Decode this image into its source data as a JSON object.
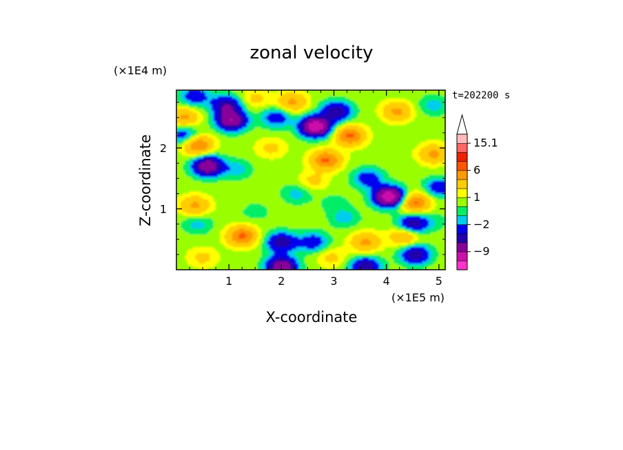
{
  "chart_data": {
    "type": "heatmap",
    "title": "zonal velocity",
    "xlabel": "X-coordinate",
    "ylabel": "Z-coordinate",
    "x_scale_note": "(×1E5 m)",
    "y_scale_note": "(×1E4 m)",
    "time_label": "t=202200 s",
    "xlim": [
      0,
      5.12
    ],
    "ylim": [
      0,
      2.95
    ],
    "x_ticks": [
      1,
      2,
      3,
      4,
      5
    ],
    "x_tick_labels": [
      "1",
      "2",
      "3",
      "4",
      "5"
    ],
    "y_ticks": [
      1,
      2
    ],
    "y_tick_labels": [
      "1",
      "2"
    ],
    "colorbar": {
      "levels": [
        -15.1,
        -12,
        -9,
        -6,
        -4,
        -2,
        -1,
        0,
        1,
        2,
        4,
        6,
        9,
        12,
        15.1
      ],
      "labels": [
        {
          "value": 15.1,
          "text": "15.1"
        },
        {
          "value": 6,
          "text": "6"
        },
        {
          "value": 1,
          "text": "1"
        },
        {
          "value": -2,
          "text": "−2"
        },
        {
          "value": -9,
          "text": "−9"
        }
      ],
      "colors": [
        "#ff33cc",
        "#cc11aa",
        "#880099",
        "#2200aa",
        "#0000ee",
        "#00ccee",
        "#00ee66",
        "#99ff00",
        "#ffff00",
        "#ffcc00",
        "#ff9900",
        "#ff5500",
        "#ee2200",
        "#ff6666",
        "#ffbbbb"
      ],
      "extend_max": true
    },
    "features": [
      {
        "x": 2.65,
        "z": 2.35,
        "value": -12
      },
      {
        "x": 1.05,
        "z": 2.45,
        "value": -9
      },
      {
        "x": 0.6,
        "z": 1.7,
        "value": -9
      },
      {
        "x": 0.95,
        "z": 2.7,
        "value": -6
      },
      {
        "x": 3.05,
        "z": 2.6,
        "value": -6
      },
      {
        "x": 4.05,
        "z": 1.2,
        "value": -12
      },
      {
        "x": 4.5,
        "z": 0.75,
        "value": -6
      },
      {
        "x": 2.0,
        "z": 0.45,
        "value": -6
      },
      {
        "x": 2.6,
        "z": 0.45,
        "value": -4
      },
      {
        "x": 4.55,
        "z": 0.25,
        "value": -6
      },
      {
        "x": 3.6,
        "z": 0.05,
        "value": -6
      },
      {
        "x": 2.0,
        "z": 0.05,
        "value": -9
      },
      {
        "x": 0.35,
        "z": 2.85,
        "value": -4
      },
      {
        "x": 1.9,
        "z": 2.5,
        "value": -4
      },
      {
        "x": 3.65,
        "z": 1.5,
        "value": -4
      },
      {
        "x": 5.0,
        "z": 1.35,
        "value": -4
      },
      {
        "x": 0.15,
        "z": 2.2,
        "value": -4
      },
      {
        "x": 2.3,
        "z": 1.25,
        "value": -2
      },
      {
        "x": 1.15,
        "z": 1.65,
        "value": -2
      },
      {
        "x": 0.4,
        "z": 0.75,
        "value": -2
      },
      {
        "x": 3.2,
        "z": 0.85,
        "value": -2
      },
      {
        "x": 4.9,
        "z": 2.7,
        "value": -2
      },
      {
        "x": 1.5,
        "z": 0.95,
        "value": -1
      },
      {
        "x": 3.0,
        "z": 1.1,
        "value": -1
      },
      {
        "x": 4.9,
        "z": 0.8,
        "value": -1
      },
      {
        "x": 1.25,
        "z": 0.55,
        "value": 6
      },
      {
        "x": 0.4,
        "z": 2.05,
        "value": 6
      },
      {
        "x": 2.85,
        "z": 1.8,
        "value": 6
      },
      {
        "x": 3.3,
        "z": 2.2,
        "value": 6
      },
      {
        "x": 4.55,
        "z": 1.1,
        "value": 6
      },
      {
        "x": 2.2,
        "z": 2.75,
        "value": 4
      },
      {
        "x": 0.35,
        "z": 1.05,
        "value": 4
      },
      {
        "x": 3.6,
        "z": 0.45,
        "value": 4
      },
      {
        "x": 0.15,
        "z": 2.5,
        "value": 4
      },
      {
        "x": 1.8,
        "z": 2.0,
        "value": 2
      },
      {
        "x": 4.2,
        "z": 2.6,
        "value": 4
      },
      {
        "x": 4.9,
        "z": 1.9,
        "value": 4
      },
      {
        "x": 0.5,
        "z": 0.2,
        "value": 2
      },
      {
        "x": 2.95,
        "z": 0.2,
        "value": 2
      },
      {
        "x": 4.35,
        "z": 0.55,
        "value": 4
      },
      {
        "x": 2.6,
        "z": 1.45,
        "value": 2
      },
      {
        "x": 1.5,
        "z": 2.8,
        "value": 2
      }
    ],
    "background_value": 0.5
  }
}
